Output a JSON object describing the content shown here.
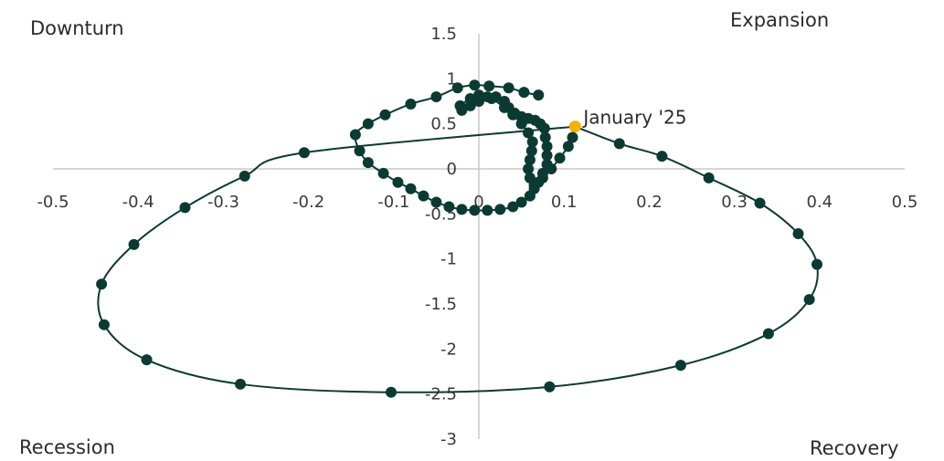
{
  "chart_data": {
    "type": "scatter",
    "title": "",
    "xlabel": "",
    "ylabel": "",
    "xlim": [
      -0.5,
      0.5
    ],
    "ylim": [
      -3,
      1.5
    ],
    "x_ticks": [
      "-0.5",
      "-0.4",
      "-0.3",
      "-0.2",
      "-0.1",
      "0",
      "0.1",
      "0.2",
      "0.3",
      "0.4",
      "0.5"
    ],
    "y_ticks": [
      "1.5",
      "1",
      "0.5",
      "0",
      "-0.5",
      "-1",
      "-1.5",
      "-2",
      "-2.5",
      "-3"
    ],
    "quadrant_labels": {
      "top_left": "Downturn",
      "top_right": "Expansion",
      "bottom_left": "Recession",
      "bottom_right": "Recovery"
    },
    "annotation": {
      "label": "January '25",
      "x": 0.113,
      "y": 0.47
    },
    "colors": {
      "series": "#0b3a32",
      "highlight": "#f0b400",
      "axis": "#c8c8c8"
    },
    "series": [
      {
        "points": [
          [
            0.07,
            0.82
          ],
          [
            0.053,
            0.85
          ],
          [
            0.035,
            0.9
          ],
          [
            0.012,
            0.92
          ],
          [
            -0.005,
            0.93
          ],
          [
            -0.025,
            0.9
          ],
          [
            -0.05,
            0.8
          ],
          [
            -0.08,
            0.72
          ],
          [
            -0.11,
            0.6
          ],
          [
            -0.13,
            0.5
          ],
          [
            -0.145,
            0.38
          ],
          [
            -0.14,
            0.2
          ],
          [
            -0.13,
            0.07
          ],
          [
            -0.112,
            -0.05
          ],
          [
            -0.095,
            -0.15
          ],
          [
            -0.08,
            -0.22
          ],
          [
            -0.065,
            -0.3
          ],
          [
            -0.05,
            -0.37
          ],
          [
            -0.035,
            -0.42
          ],
          [
            -0.02,
            -0.45
          ],
          [
            -0.005,
            -0.46
          ],
          [
            0.01,
            -0.46
          ],
          [
            0.025,
            -0.45
          ],
          [
            0.04,
            -0.42
          ],
          [
            0.05,
            -0.37
          ],
          [
            0.06,
            -0.3
          ],
          [
            0.065,
            -0.22
          ],
          [
            0.07,
            -0.15
          ],
          [
            0.075,
            -0.05
          ],
          [
            0.08,
            0.05
          ],
          [
            0.08,
            0.15
          ],
          [
            0.08,
            0.25
          ],
          [
            0.078,
            0.35
          ],
          [
            0.077,
            0.45
          ],
          [
            0.072,
            0.5
          ],
          [
            0.066,
            0.54
          ],
          [
            0.058,
            0.56
          ],
          [
            0.05,
            0.58
          ],
          [
            0.042,
            0.62
          ],
          [
            0.035,
            0.68
          ],
          [
            0.03,
            0.75
          ],
          [
            0.02,
            0.8
          ],
          [
            0.01,
            0.8
          ],
          [
            0.0,
            0.75
          ],
          [
            -0.01,
            0.7
          ],
          [
            -0.02,
            0.65
          ],
          [
            -0.022,
            0.7
          ],
          [
            -0.01,
            0.78
          ],
          [
            0.0,
            0.82
          ],
          [
            0.015,
            0.78
          ],
          [
            0.03,
            0.68
          ],
          [
            0.04,
            0.6
          ],
          [
            0.05,
            0.5
          ],
          [
            0.058,
            0.4
          ],
          [
            0.063,
            0.3
          ],
          [
            0.062,
            0.2
          ],
          [
            0.06,
            0.1
          ],
          [
            0.058,
            0.0
          ],
          [
            0.06,
            -0.1
          ],
          [
            0.065,
            -0.18
          ],
          [
            0.075,
            -0.1
          ],
          [
            0.085,
            0.0
          ],
          [
            0.095,
            0.12
          ],
          [
            0.105,
            0.25
          ],
          [
            0.11,
            0.35
          ]
        ]
      },
      {
        "points": [
          [
            0.165,
            0.28
          ],
          [
            0.215,
            0.14
          ],
          [
            0.27,
            -0.1
          ],
          [
            0.33,
            -0.38
          ],
          [
            0.375,
            -0.72
          ],
          [
            0.397,
            -1.06
          ],
          [
            0.388,
            -1.45
          ],
          [
            0.34,
            -1.83
          ],
          [
            0.237,
            -2.18
          ],
          [
            0.083,
            -2.42
          ],
          [
            -0.103,
            -2.48
          ],
          [
            -0.28,
            -2.39
          ],
          [
            -0.39,
            -2.12
          ],
          [
            -0.44,
            -1.73
          ],
          [
            -0.443,
            -1.28
          ],
          [
            -0.405,
            -0.84
          ],
          [
            -0.345,
            -0.43
          ],
          [
            -0.275,
            -0.08
          ],
          [
            -0.205,
            0.18
          ]
        ]
      }
    ]
  }
}
